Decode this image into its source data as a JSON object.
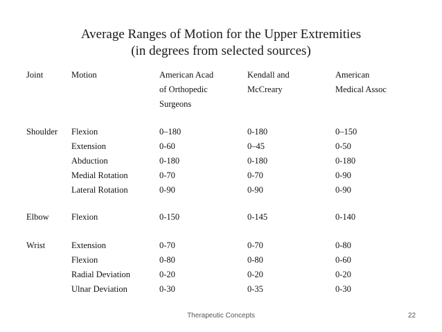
{
  "title": {
    "line1": "Average Ranges of Motion for the Upper Extremities",
    "line2": "(in degrees from selected sources)"
  },
  "table": {
    "headers": {
      "joint": "Joint",
      "motion": "Motion",
      "aaos": [
        "American  Acad",
        "of Orthopedic",
        "Surgeons"
      ],
      "kendall": [
        "Kendall and",
        "McCreary"
      ],
      "ama": [
        "American",
        "Medical Assoc"
      ]
    },
    "rows": [
      {
        "joint": "Shoulder",
        "motion": "Flexion",
        "aaos": "0–180",
        "kendall": "0-180",
        "ama": "0–150"
      },
      {
        "joint": "",
        "motion": "Extension",
        "aaos": "0-60",
        "kendall": "0–45",
        "ama": "0-50"
      },
      {
        "joint": "",
        "motion": "Abduction",
        "aaos": "0-180",
        "kendall": "0-180",
        "ama": "0-180"
      },
      {
        "joint": "",
        "motion": "Medial Rotation",
        "aaos": "0-70",
        "kendall": "0-70",
        "ama": "0-90"
      },
      {
        "joint": "",
        "motion": "Lateral Rotation",
        "aaos": "0-90",
        "kendall": "0-90",
        "ama": "0-90"
      },
      {
        "joint": "Elbow",
        "motion": "Flexion",
        "aaos": "0-150",
        "kendall": "0-145",
        "ama": "0-140"
      },
      {
        "joint": "Wrist",
        "motion": "Extension",
        "aaos": "0-70",
        "kendall": "0-70",
        "ama": "0-80"
      },
      {
        "joint": "",
        "motion": "Flexion",
        "aaos": "0-80",
        "kendall": "0-80",
        "ama": "0-60"
      },
      {
        "joint": "",
        "motion": "Radial Deviation",
        "aaos": "0-20",
        "kendall": "0-20",
        "ama": "0-20"
      },
      {
        "joint": "",
        "motion": "Ulnar Deviation",
        "aaos": "0-30",
        "kendall": "0-35",
        "ama": "0-30"
      }
    ]
  },
  "footer": {
    "text": "Therapeutic Concepts",
    "page_number": "22"
  }
}
